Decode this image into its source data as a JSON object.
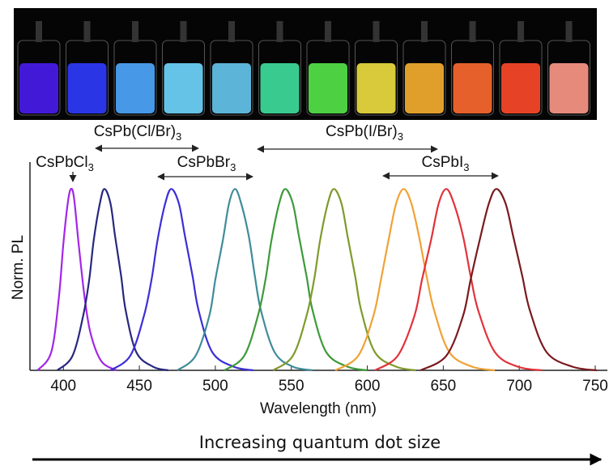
{
  "chart_data": {
    "type": "line",
    "ylabel": "Norm. PL",
    "xlabel": "Wavelength (nm)",
    "xlim": [
      378,
      758
    ],
    "xticks": [
      400,
      450,
      500,
      550,
      600,
      650,
      700,
      750
    ],
    "ylim": [
      0,
      1.05
    ],
    "annotations": [
      {
        "text": "CsPb(Cl/Br)",
        "sub": "3"
      },
      {
        "text": "CsPb(I/Br)",
        "sub": "3"
      },
      {
        "text": "CsPbCl",
        "sub": "3"
      },
      {
        "text": "CsPbBr",
        "sub": "3"
      },
      {
        "text": "CsPbI",
        "sub": "3"
      }
    ],
    "series": [
      {
        "color": "#a326e8",
        "x": [
          383,
          392,
          397,
          400,
          403,
          405,
          407,
          410,
          414,
          418,
          425,
          435
        ],
        "values": [
          0,
          0.1,
          0.4,
          0.7,
          0.93,
          1,
          0.95,
          0.7,
          0.4,
          0.2,
          0.05,
          0
        ]
      },
      {
        "color": "#27287f",
        "x": [
          396,
          406,
          413,
          417,
          420,
          424,
          427,
          431,
          434,
          438,
          441,
          448,
          459,
          469
        ],
        "values": [
          0,
          0.08,
          0.3,
          0.5,
          0.72,
          0.92,
          1,
          0.92,
          0.74,
          0.52,
          0.33,
          0.1,
          0.02,
          0
        ]
      },
      {
        "color": "#3b2fd6",
        "x": [
          431,
          444,
          453,
          458,
          462,
          467,
          471,
          476,
          480,
          485,
          489,
          498,
          512,
          525
        ],
        "values": [
          0,
          0.08,
          0.3,
          0.5,
          0.72,
          0.92,
          1,
          0.92,
          0.74,
          0.52,
          0.33,
          0.1,
          0.02,
          0
        ]
      },
      {
        "color": "#3e8c98",
        "x": [
          475,
          487,
          496,
          500,
          505,
          509,
          513,
          517,
          522,
          526,
          530,
          539,
          551,
          564
        ],
        "values": [
          0,
          0.08,
          0.3,
          0.5,
          0.72,
          0.92,
          1,
          0.92,
          0.74,
          0.52,
          0.33,
          0.1,
          0.02,
          0
        ]
      },
      {
        "color": "#3d9a3a",
        "x": [
          506,
          519,
          528,
          533,
          537,
          542,
          546,
          551,
          555,
          560,
          564,
          573,
          587,
          600
        ],
        "values": [
          0,
          0.08,
          0.3,
          0.5,
          0.72,
          0.92,
          1,
          0.92,
          0.74,
          0.52,
          0.33,
          0.1,
          0.02,
          0
        ]
      },
      {
        "color": "#7f9a2b",
        "x": [
          538,
          551,
          560,
          565,
          569,
          574,
          578,
          583,
          587,
          592,
          596,
          605,
          619,
          632
        ],
        "values": [
          0,
          0.08,
          0.3,
          0.5,
          0.72,
          0.92,
          1,
          0.92,
          0.74,
          0.52,
          0.33,
          0.1,
          0.02,
          0
        ]
      },
      {
        "color": "#f0a235",
        "x": [
          579,
          594,
          604,
          609,
          614,
          619,
          624,
          629,
          634,
          639,
          644,
          654,
          669,
          684
        ],
        "values": [
          0,
          0.08,
          0.3,
          0.5,
          0.72,
          0.92,
          1,
          0.92,
          0.74,
          0.52,
          0.33,
          0.1,
          0.02,
          0
        ]
      },
      {
        "color": "#e2323a",
        "x": [
          605,
          620,
          631,
          636,
          642,
          647,
          652,
          657,
          663,
          668,
          673,
          684,
          699,
          715
        ],
        "values": [
          0,
          0.08,
          0.3,
          0.5,
          0.72,
          0.92,
          1,
          0.92,
          0.74,
          0.52,
          0.33,
          0.1,
          0.02,
          0
        ]
      },
      {
        "color": "#7a1a1e",
        "x": [
          635,
          652,
          663,
          668,
          674,
          680,
          685,
          691,
          696,
          702,
          707,
          718,
          735,
          751
        ],
        "values": [
          0,
          0.08,
          0.3,
          0.5,
          0.72,
          0.92,
          1,
          0.92,
          0.74,
          0.52,
          0.33,
          0.1,
          0.02,
          0
        ]
      }
    ]
  },
  "caption": "Increasing quantum dot size"
}
